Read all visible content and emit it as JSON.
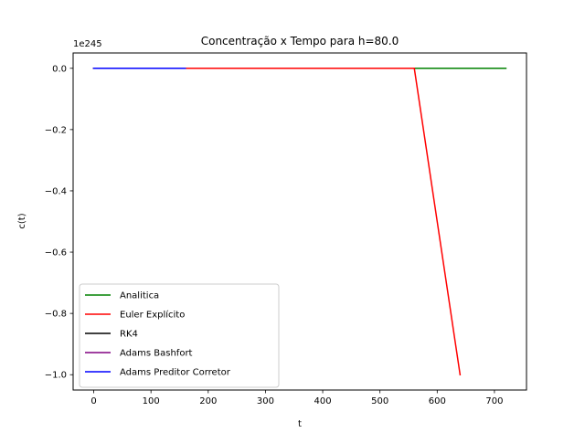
{
  "chart_data": {
    "type": "line",
    "title": "Concentração x Tempo para h=80.0",
    "xlabel": "t",
    "ylabel": "c(t)",
    "y_offset_label": "1e245",
    "y_scale_exponent": 245,
    "xlim": [
      -36,
      756
    ],
    "ylim": [
      -1.05,
      0.05
    ],
    "x_ticks": [
      0,
      100,
      200,
      300,
      400,
      500,
      600,
      700
    ],
    "y_ticks": [
      0.0,
      -0.2,
      -0.4,
      -0.6,
      -0.8,
      -1.0
    ],
    "y_tick_labels": [
      "0.0",
      "−0.2",
      "−0.4",
      "−0.6",
      "−0.8",
      "−1.0"
    ],
    "grid": false,
    "legend_position": "lower left",
    "series": [
      {
        "name": "Analitica",
        "color": "#008000",
        "x": [
          0,
          80,
          160,
          240,
          320,
          400,
          480,
          560,
          640,
          720
        ],
        "y": [
          0,
          0,
          0,
          0,
          0,
          0,
          0,
          0,
          0,
          0
        ]
      },
      {
        "name": "Euler Explícito",
        "color": "#ff0000",
        "x": [
          0,
          80,
          160,
          240,
          320,
          400,
          480,
          560,
          640
        ],
        "y": [
          0,
          0,
          0,
          0,
          0,
          0,
          0,
          0,
          -1.0
        ]
      },
      {
        "name": "RK4",
        "color": "#000000",
        "x": [
          0,
          80,
          160
        ],
        "y": [
          0,
          0,
          0
        ]
      },
      {
        "name": "Adams Bashfort",
        "color": "#800080",
        "x": [
          0,
          80,
          160
        ],
        "y": [
          0,
          0,
          0
        ]
      },
      {
        "name": "Adams Preditor Corretor",
        "color": "#0000ff",
        "x": [
          0,
          80,
          160
        ],
        "y": [
          0,
          0,
          0
        ]
      }
    ]
  }
}
